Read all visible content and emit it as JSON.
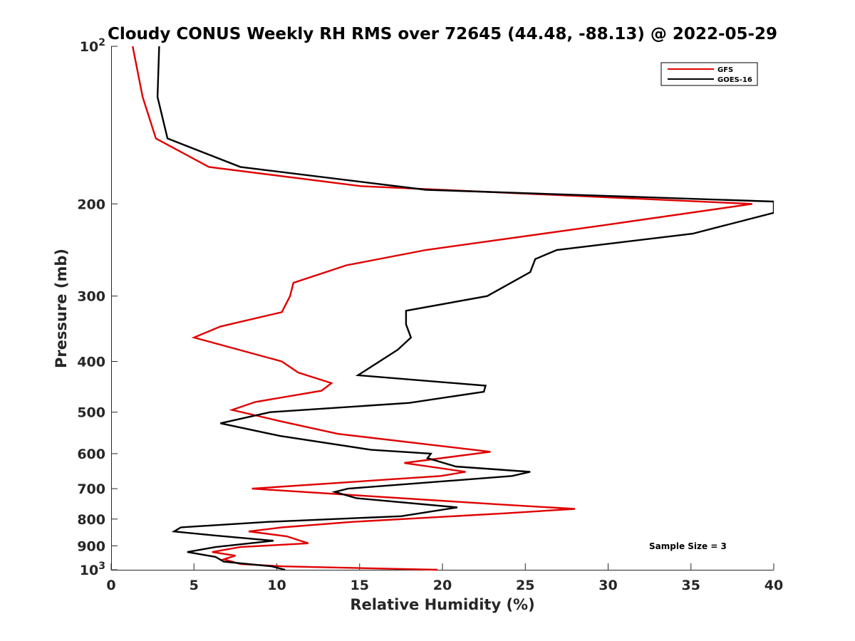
{
  "chart_data": {
    "type": "line",
    "title": "Cloudy CONUS Weekly RH RMS over 72645 (44.48, -88.13) @ 2022-05-29",
    "xlabel": "Relative Humidity (%)",
    "ylabel": "Pressure (mb)",
    "xlim": [
      0,
      40
    ],
    "ylim": [
      100,
      1000
    ],
    "y_scale": "log",
    "y_reversed": true,
    "x_ticks": [
      "0",
      "5",
      "10",
      "15",
      "20",
      "25",
      "30",
      "35",
      "40"
    ],
    "y_ticks": [
      {
        "value": 100,
        "base": "10",
        "exp": "2"
      },
      {
        "value": 200,
        "label": "200"
      },
      {
        "value": 300,
        "label": "300"
      },
      {
        "value": 400,
        "label": "400"
      },
      {
        "value": 500,
        "label": "500"
      },
      {
        "value": 600,
        "label": "600"
      },
      {
        "value": 700,
        "label": "700"
      },
      {
        "value": 800,
        "label": "800"
      },
      {
        "value": 900,
        "label": "900"
      },
      {
        "value": 1000,
        "base": "10",
        "exp": "3"
      }
    ],
    "legend_position": "top-right",
    "grid": false,
    "annotation": "Sample Size = 3",
    "series": [
      {
        "name": "GFS",
        "color": "#e00000",
        "points": [
          [
            1.3,
            100
          ],
          [
            1.9,
            125
          ],
          [
            2.7,
            150
          ],
          [
            5.9,
            170
          ],
          [
            15.1,
            185
          ],
          [
            38.7,
            200
          ],
          [
            29.6,
            220
          ],
          [
            19.0,
            245
          ],
          [
            14.2,
            262
          ],
          [
            11.0,
            283
          ],
          [
            10.8,
            300
          ],
          [
            10.3,
            322
          ],
          [
            6.6,
            343
          ],
          [
            5.0,
            360
          ],
          [
            10.3,
            400
          ],
          [
            11.3,
            420
          ],
          [
            13.3,
            440
          ],
          [
            12.7,
            455
          ],
          [
            8.7,
            478
          ],
          [
            7.3,
            495
          ],
          [
            10.2,
            520
          ],
          [
            13.7,
            550
          ],
          [
            22.9,
            595
          ],
          [
            17.7,
            625
          ],
          [
            21.4,
            650
          ],
          [
            19.9,
            662
          ],
          [
            8.5,
            700
          ],
          [
            23.4,
            750
          ],
          [
            28.0,
            765
          ],
          [
            23.8,
            780
          ],
          [
            14.6,
            810
          ],
          [
            10.3,
            830
          ],
          [
            8.3,
            845
          ],
          [
            10.6,
            863
          ],
          [
            11.9,
            890
          ],
          [
            7.8,
            905
          ],
          [
            6.1,
            925
          ],
          [
            7.5,
            940
          ],
          [
            6.8,
            955
          ],
          [
            7.8,
            975
          ],
          [
            10.4,
            985
          ],
          [
            19.7,
            1000
          ]
        ]
      },
      {
        "name": "GOES-16",
        "color": "#000000",
        "points": [
          [
            2.9,
            100
          ],
          [
            2.8,
            125
          ],
          [
            3.4,
            150
          ],
          [
            7.8,
            170
          ],
          [
            19.0,
            188
          ],
          [
            40.0,
            198
          ],
          [
            40.0,
            208
          ],
          [
            35.1,
            228
          ],
          [
            26.9,
            245
          ],
          [
            25.6,
            255
          ],
          [
            25.3,
            270
          ],
          [
            22.7,
            300
          ],
          [
            17.8,
            320
          ],
          [
            17.8,
            340
          ],
          [
            18.1,
            360
          ],
          [
            17.3,
            380
          ],
          [
            16.2,
            400
          ],
          [
            14.9,
            425
          ],
          [
            22.6,
            445
          ],
          [
            22.5,
            457
          ],
          [
            18.0,
            480
          ],
          [
            9.6,
            500
          ],
          [
            6.6,
            525
          ],
          [
            10.2,
            555
          ],
          [
            15.7,
            590
          ],
          [
            19.3,
            600
          ],
          [
            19.1,
            612
          ],
          [
            20.8,
            635
          ],
          [
            25.3,
            650
          ],
          [
            24.2,
            662
          ],
          [
            14.3,
            700
          ],
          [
            13.5,
            710
          ],
          [
            14.8,
            730
          ],
          [
            20.9,
            760
          ],
          [
            17.5,
            790
          ],
          [
            9.5,
            810
          ],
          [
            4.2,
            830
          ],
          [
            3.8,
            845
          ],
          [
            6.3,
            860
          ],
          [
            9.8,
            880
          ],
          [
            6.3,
            905
          ],
          [
            4.6,
            925
          ],
          [
            6.3,
            945
          ],
          [
            6.8,
            965
          ],
          [
            9.7,
            985
          ],
          [
            10.5,
            1000
          ]
        ]
      }
    ]
  }
}
